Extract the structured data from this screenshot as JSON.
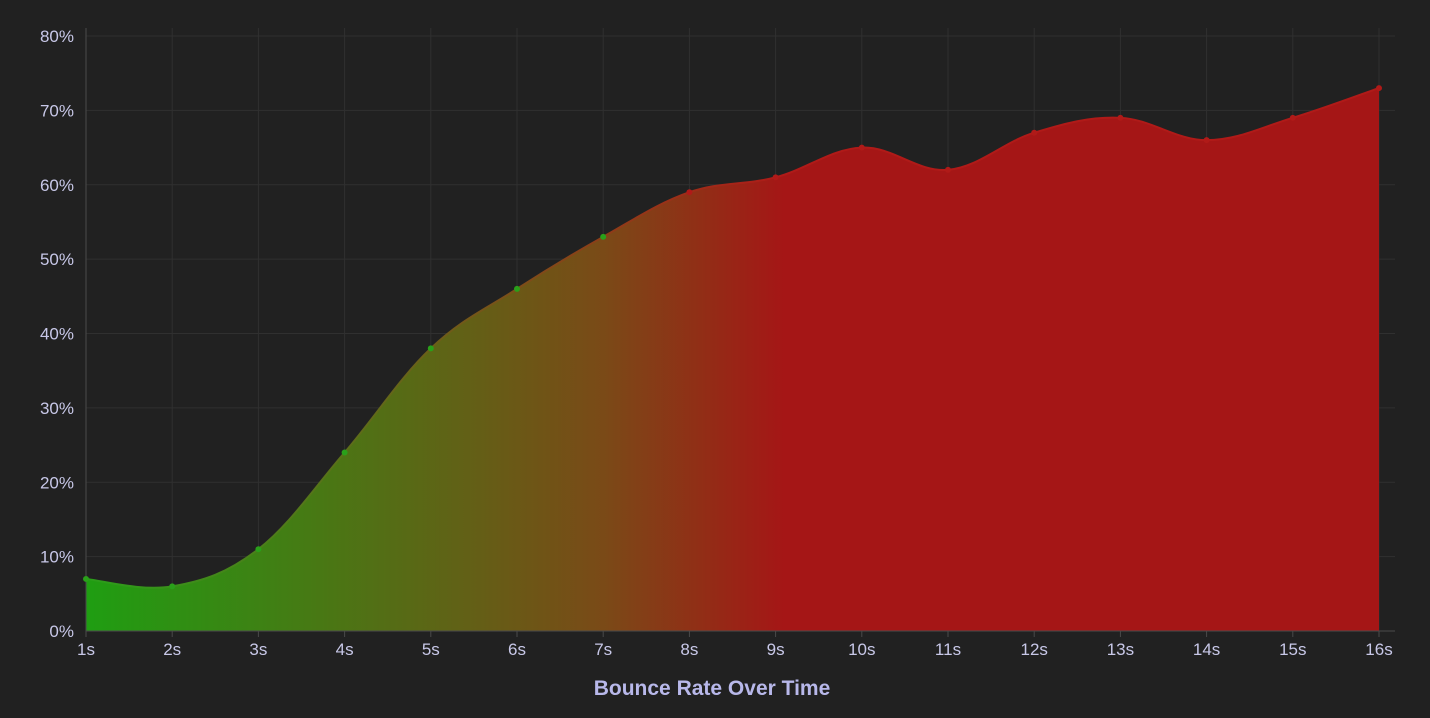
{
  "chart_data": {
    "type": "area",
    "title": "",
    "xlabel": "Bounce Rate Over Time",
    "ylabel": "",
    "categories": [
      "1s",
      "2s",
      "3s",
      "4s",
      "5s",
      "6s",
      "7s",
      "8s",
      "9s",
      "10s",
      "11s",
      "12s",
      "13s",
      "14s",
      "15s",
      "16s"
    ],
    "series": [
      {
        "values": [
          7,
          6,
          11,
          24,
          38,
          46,
          53,
          59,
          61,
          65,
          62,
          67,
          69,
          66,
          69,
          73
        ]
      }
    ],
    "ylim": [
      0,
      80
    ],
    "yticks": [
      0,
      10,
      20,
      30,
      40,
      50,
      60,
      70,
      80
    ],
    "ytick_labels": [
      "0%",
      "10%",
      "20%",
      "30%",
      "40%",
      "50%",
      "60%",
      "70%",
      "80%"
    ],
    "grid": true,
    "legend": "none",
    "colors": {
      "background": "#212121",
      "gradient_start": "#1f9e12",
      "gradient_mid": "#7a4a17",
      "gradient_end": "#a51616",
      "line_start": "#2aa01a",
      "line_end": "#b01a18"
    }
  }
}
